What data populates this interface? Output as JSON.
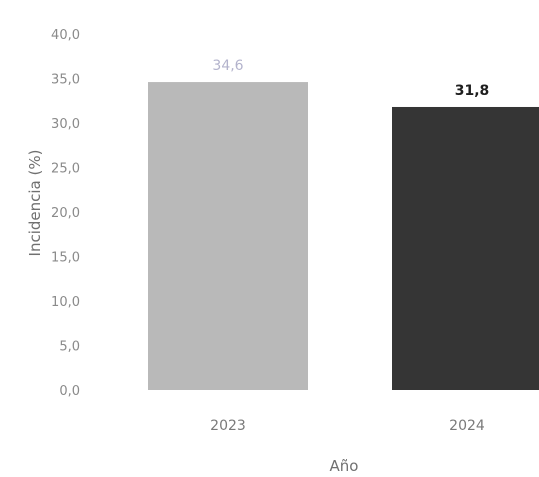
{
  "chart_data": {
    "type": "bar",
    "categories": [
      "2023",
      "2024"
    ],
    "values": [
      34.6,
      31.8
    ],
    "value_labels": [
      "34,6",
      "31,8"
    ],
    "bar_colors": [
      "#b9b9b9",
      "#353535"
    ],
    "value_label_colors": [
      "#b3b3cc",
      "#1e1e1e"
    ],
    "xlabel": "Año",
    "ylabel": "Incidencia (%)",
    "ylim": [
      0,
      40
    ],
    "yticks": [
      0,
      5,
      10,
      15,
      20,
      25,
      30,
      35,
      40
    ],
    "ytick_labels": [
      "0,0",
      "5,0",
      "10,0",
      "15,0",
      "20,0",
      "25,0",
      "30,0",
      "35,0",
      "40,0"
    ],
    "grid": false,
    "legend": "none"
  }
}
